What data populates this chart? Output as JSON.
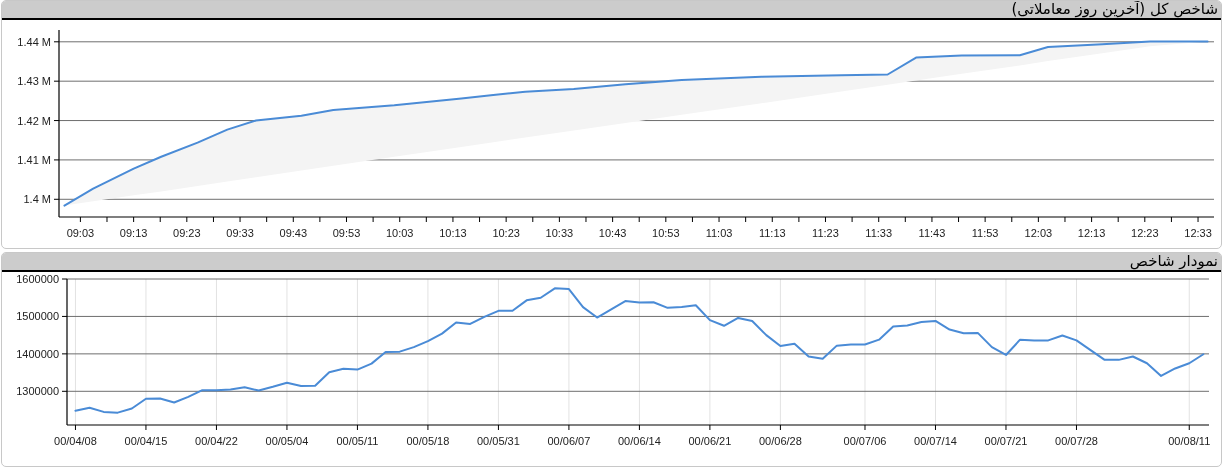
{
  "chart_data": [
    {
      "type": "line",
      "title": "شاخص کل (آخرین روز معاملاتی)",
      "x": [
        9.0,
        9.09,
        9.217,
        9.303,
        9.417,
        9.51,
        9.6,
        9.742,
        9.842,
        10.033,
        10.243,
        10.343,
        10.443,
        10.595,
        10.757,
        10.933,
        11.183,
        11.433,
        11.578,
        11.667,
        11.81,
        11.992,
        12.08,
        12.25,
        12.4,
        12.58
      ],
      "series": [
        {
          "color": "#4a8bd6",
          "values": [
            1398400,
            1402700,
            1407800,
            1410800,
            1414400,
            1417700,
            1420000,
            1421200,
            1422700,
            1423900,
            1425600,
            1426500,
            1427300,
            1428000,
            1429200,
            1430300,
            1431100,
            1431500,
            1431700,
            1436000,
            1436500,
            1436600,
            1438700,
            1439400,
            1440100,
            1440100
          ],
          "upper": [
            1398400,
            1402700,
            1407800,
            1410800,
            1414400,
            1417700,
            1420000,
            1421200,
            1422700,
            1423900,
            1425600,
            1426500,
            1427300,
            1428000,
            1429200,
            1430300,
            1431100,
            1431500,
            1431700,
            1436000,
            1436500,
            1436600,
            1438700,
            1439400,
            1440100,
            1440100
          ],
          "lower": [
            1398400,
            1399500,
            1401000,
            1402000,
            1403400,
            1404500,
            1405600,
            1407300,
            1408500,
            1410800,
            1413300,
            1414500,
            1415700,
            1417500,
            1419400,
            1421500,
            1424400,
            1427400,
            1429100,
            1430200,
            1431900,
            1434000,
            1435100,
            1437100,
            1438900,
            1440100
          ]
        }
      ],
      "xlim": [
        8.983,
        12.6
      ],
      "ylim": [
        1395500,
        1443000
      ],
      "xticks": [
        {
          "value": 9.05,
          "label": "09:03"
        },
        {
          "value": 9.1333,
          "label": null
        },
        {
          "value": 9.2167,
          "label": "09:13"
        },
        {
          "value": 9.3,
          "label": null
        },
        {
          "value": 9.3833,
          "label": "09:23"
        },
        {
          "value": 9.4667,
          "label": null
        },
        {
          "value": 9.55,
          "label": "09:33"
        },
        {
          "value": 9.6333,
          "label": null
        },
        {
          "value": 9.7167,
          "label": "09:43"
        },
        {
          "value": 9.8,
          "label": null
        },
        {
          "value": 9.8833,
          "label": "09:53"
        },
        {
          "value": 9.9667,
          "label": null
        },
        {
          "value": 10.05,
          "label": "10:03"
        },
        {
          "value": 10.1333,
          "label": null
        },
        {
          "value": 10.2167,
          "label": "10:13"
        },
        {
          "value": 10.3,
          "label": null
        },
        {
          "value": 10.3833,
          "label": "10:23"
        },
        {
          "value": 10.4667,
          "label": null
        },
        {
          "value": 10.55,
          "label": "10:33"
        },
        {
          "value": 10.6333,
          "label": null
        },
        {
          "value": 10.7167,
          "label": "10:43"
        },
        {
          "value": 10.8,
          "label": null
        },
        {
          "value": 10.8833,
          "label": "10:53"
        },
        {
          "value": 10.9667,
          "label": null
        },
        {
          "value": 11.05,
          "label": "11:03"
        },
        {
          "value": 11.1333,
          "label": null
        },
        {
          "value": 11.2167,
          "label": "11:13"
        },
        {
          "value": 11.3,
          "label": null
        },
        {
          "value": 11.3833,
          "label": "11:23"
        },
        {
          "value": 11.4667,
          "label": null
        },
        {
          "value": 11.55,
          "label": "11:33"
        },
        {
          "value": 11.6333,
          "label": null
        },
        {
          "value": 11.7167,
          "label": "11:43"
        },
        {
          "value": 11.8,
          "label": null
        },
        {
          "value": 11.8833,
          "label": "11:53"
        },
        {
          "value": 11.9667,
          "label": null
        },
        {
          "value": 12.05,
          "label": "12:03"
        },
        {
          "value": 12.1333,
          "label": null
        },
        {
          "value": 12.2167,
          "label": "12:13"
        },
        {
          "value": 12.3,
          "label": null
        },
        {
          "value": 12.3833,
          "label": "12:23"
        },
        {
          "value": 12.4667,
          "label": null
        },
        {
          "value": 12.55,
          "label": "12:33"
        }
      ],
      "yticks": [
        {
          "value": 1400000,
          "label": "1.4 M"
        },
        {
          "value": 1410000,
          "label": "1.41 M"
        },
        {
          "value": 1420000,
          "label": "1.42 M"
        },
        {
          "value": 1430000,
          "label": "1.43 M"
        },
        {
          "value": 1440000,
          "label": "1.44 M"
        }
      ],
      "grid": "y"
    },
    {
      "type": "line",
      "title": "نمودار شاخص",
      "categories": [
        "00/04/08",
        null,
        null,
        null,
        null,
        "00/04/15",
        null,
        null,
        null,
        null,
        "00/04/22",
        null,
        null,
        null,
        null,
        "00/05/04",
        null,
        null,
        null,
        null,
        "00/05/11",
        null,
        null,
        null,
        null,
        "00/05/18",
        null,
        null,
        null,
        null,
        "00/05/31",
        null,
        null,
        null,
        null,
        "00/06/07",
        null,
        null,
        null,
        null,
        "00/06/14",
        null,
        null,
        null,
        null,
        "00/06/21",
        null,
        null,
        null,
        null,
        "00/06/28",
        null,
        null,
        null,
        null,
        null,
        "00/07/06",
        null,
        null,
        null,
        null,
        "00/07/14",
        null,
        null,
        null,
        null,
        "00/07/21",
        null,
        null,
        null,
        null,
        "00/07/28",
        null,
        null,
        null,
        null,
        null,
        null,
        null,
        "00/08/11",
        null
      ],
      "series": [
        {
          "color": "#4a8bd6",
          "values": [
            1248000,
            1256000,
            1245000,
            1243000,
            1254000,
            1280000,
            1281000,
            1270000,
            1285000,
            1303000,
            1303000,
            1305000,
            1311000,
            1302000,
            1312000,
            1323000,
            1314000,
            1315000,
            1351000,
            1360000,
            1358000,
            1374000,
            1405000,
            1406000,
            1418000,
            1434000,
            1454000,
            1484000,
            1480000,
            1499000,
            1515000,
            1515000,
            1543000,
            1550000,
            1575000,
            1573000,
            1525000,
            1497000,
            1519000,
            1541000,
            1537000,
            1538000,
            1523000,
            1525000,
            1530000,
            1490000,
            1475000,
            1496000,
            1488000,
            1450000,
            1421000,
            1427000,
            1393000,
            1387000,
            1422000,
            1425000,
            1425000,
            1438000,
            1473000,
            1476000,
            1485000,
            1488000,
            1465000,
            1455000,
            1456000,
            1418000,
            1397000,
            1438000,
            1436000,
            1436000,
            1449000,
            1436000,
            1410000,
            1384000,
            1384000,
            1393000,
            1375000,
            1341000,
            1361000,
            1375000,
            1399000
          ]
        }
      ],
      "ylim": [
        1210000,
        1600000
      ],
      "yticks": [
        1300000,
        1400000,
        1500000,
        1600000
      ],
      "grid": true
    }
  ]
}
